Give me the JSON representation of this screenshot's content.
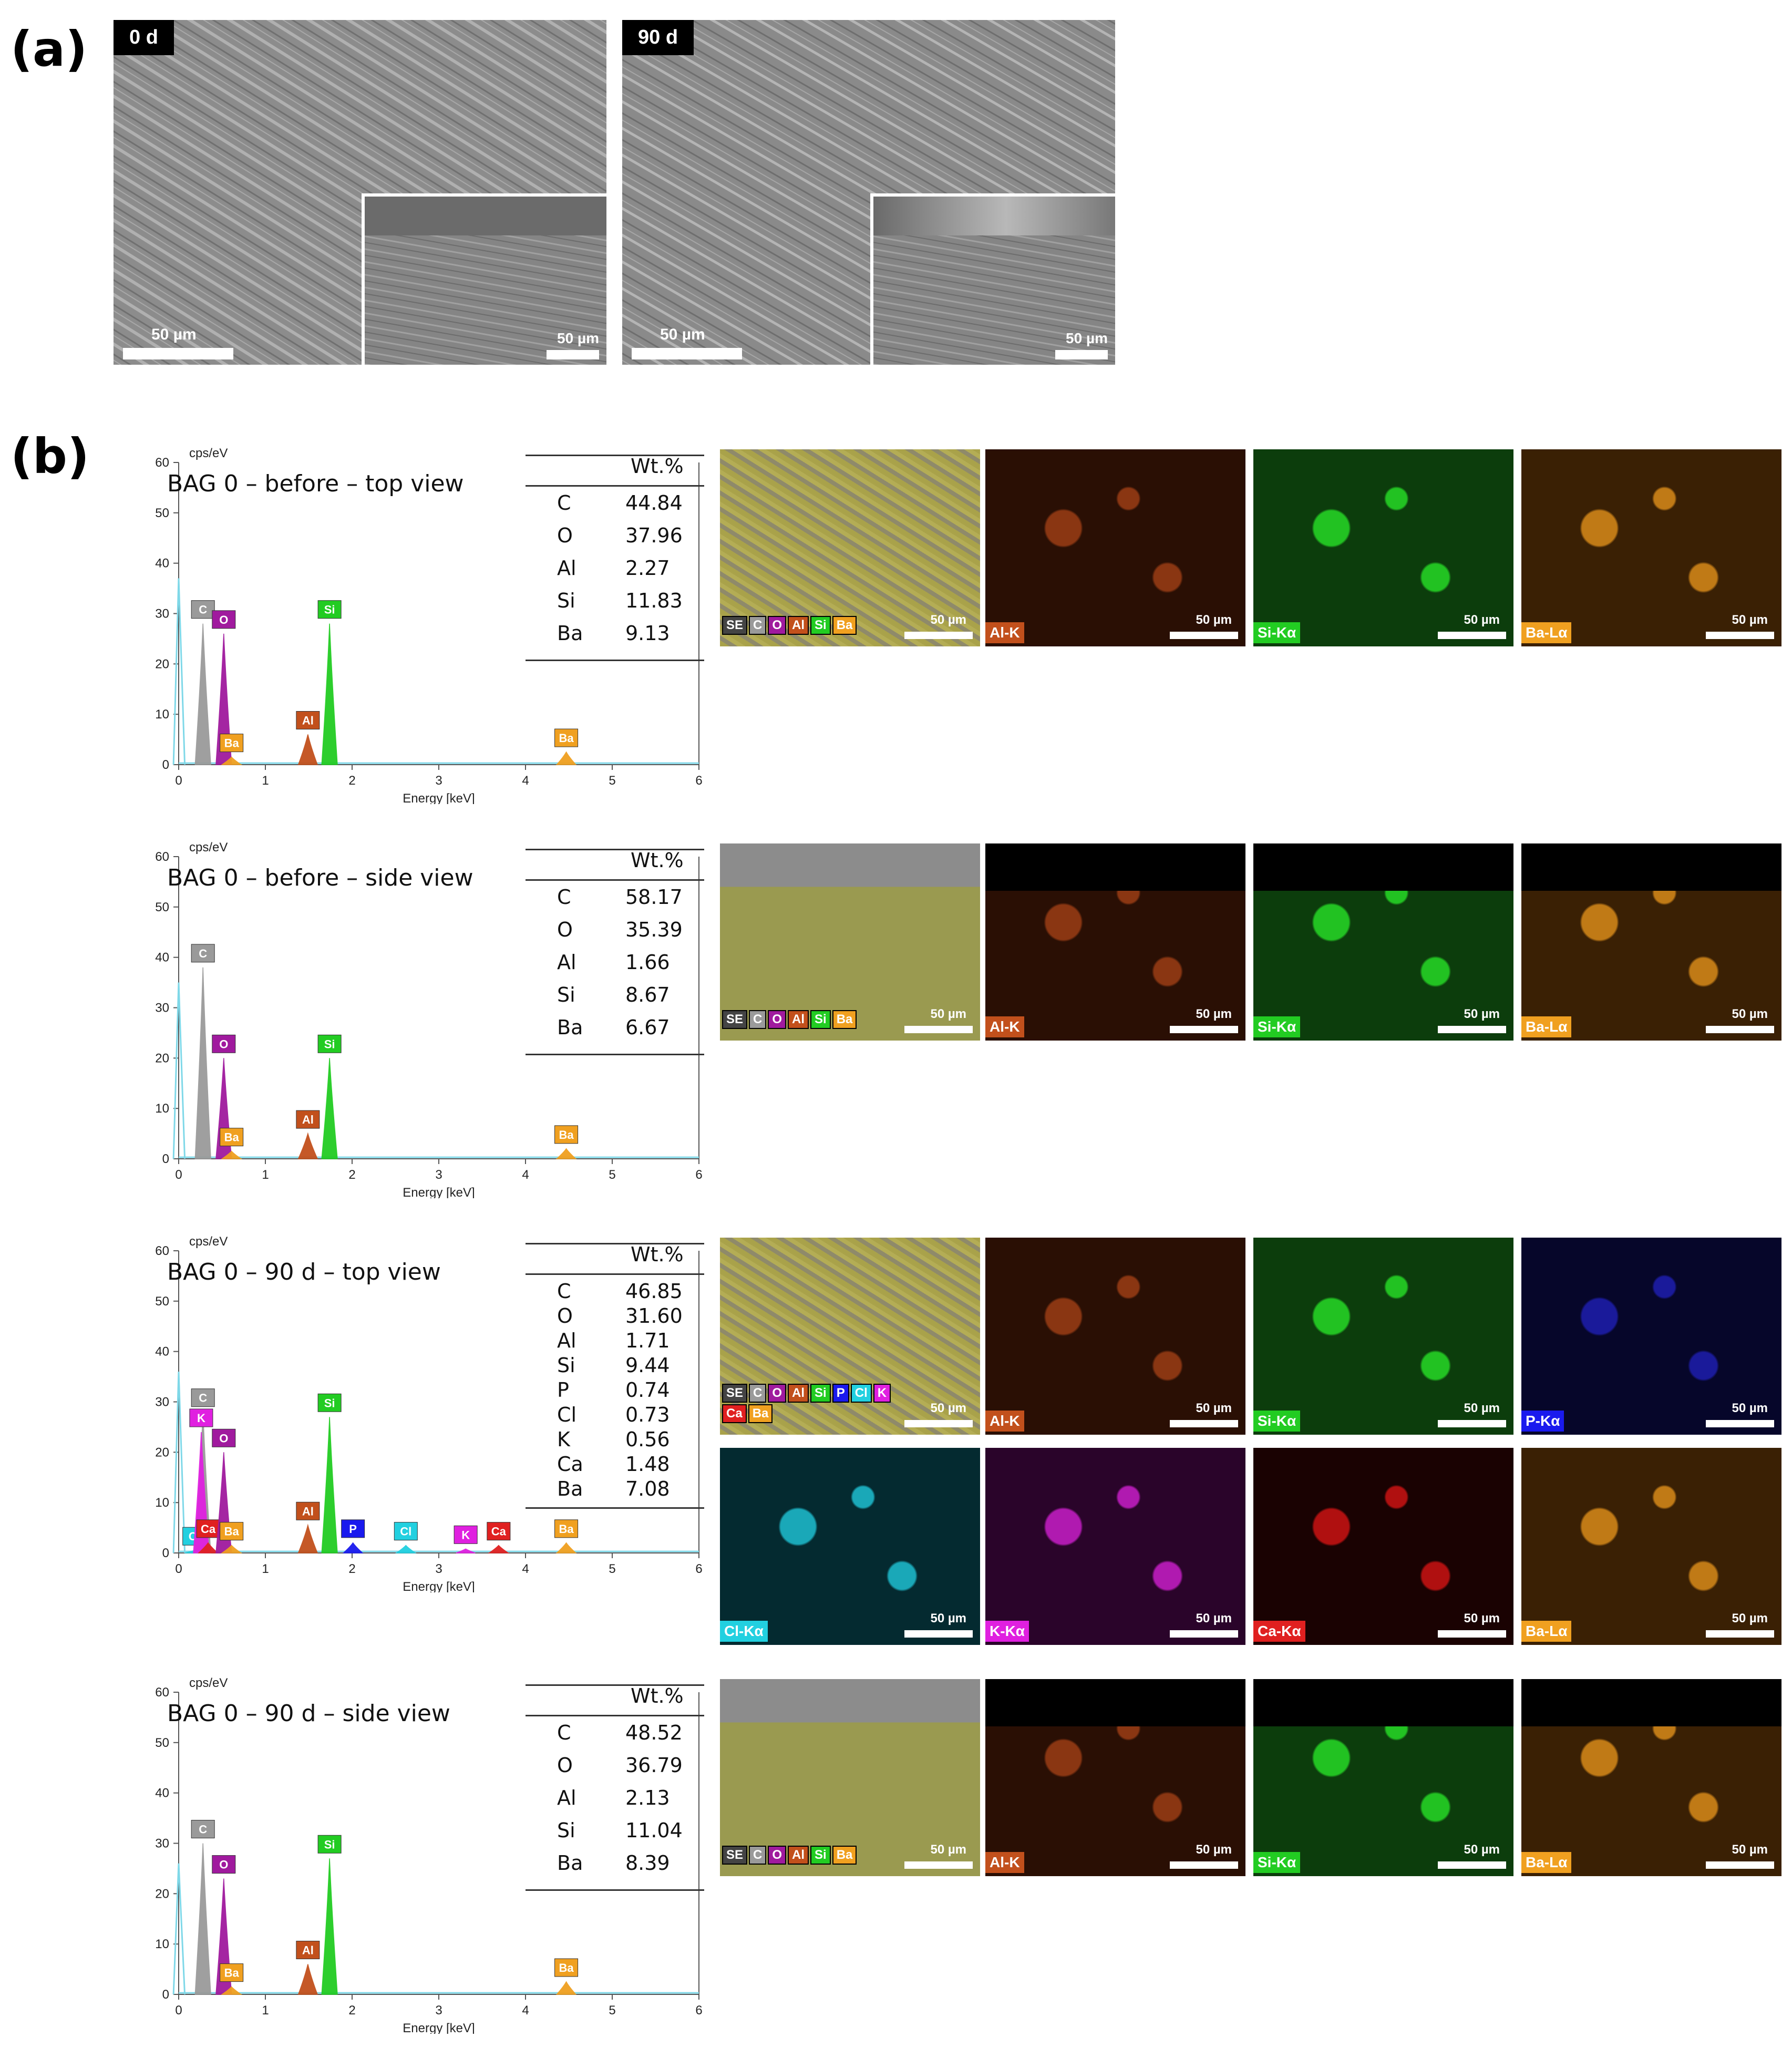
{
  "panel_a": {
    "letter": "(a)",
    "images": [
      {
        "tag": "0 d",
        "scale_main": "50 µm",
        "scale_inset": "50 µm"
      },
      {
        "tag": "90 d",
        "scale_main": "50 µm",
        "scale_inset": "50 µm"
      }
    ]
  },
  "panel_b": {
    "letter": "(b)",
    "rows": [
      {
        "title": "BAG 0 – before – top view",
        "table_header": "Wt.%",
        "table": [
          {
            "el": "C",
            "val": "44.84"
          },
          {
            "el": "O",
            "val": "37.96"
          },
          {
            "el": "Al",
            "val": "2.27"
          },
          {
            "el": "Si",
            "val": "11.83"
          },
          {
            "el": "Ba",
            "val": "9.13"
          }
        ],
        "chips": [
          "SE",
          "C",
          "O",
          "Al",
          "Si",
          "Ba"
        ],
        "maps": [
          {
            "label": "Al-K",
            "scale": "50 µm"
          },
          {
            "label": "Si-Kα",
            "scale": "50 µm"
          },
          {
            "label": "Ba-Lα",
            "scale": "50 µm"
          }
        ],
        "overlay_scale": "50 µm"
      },
      {
        "title": "BAG 0 – before – side view",
        "table_header": "Wt.%",
        "table": [
          {
            "el": "C",
            "val": "58.17"
          },
          {
            "el": "O",
            "val": "35.39"
          },
          {
            "el": "Al",
            "val": "1.66"
          },
          {
            "el": "Si",
            "val": "8.67"
          },
          {
            "el": "Ba",
            "val": "6.67"
          }
        ],
        "chips": [
          "SE",
          "C",
          "O",
          "Al",
          "Si",
          "Ba"
        ],
        "maps": [
          {
            "label": "Al-K",
            "scale": "50 µm"
          },
          {
            "label": "Si-Kα",
            "scale": "50 µm"
          },
          {
            "label": "Ba-Lα",
            "scale": "50 µm"
          }
        ],
        "overlay_scale": "50 µm"
      },
      {
        "title": "BAG 0 – 90 d – top view",
        "table_header": "Wt.%",
        "table": [
          {
            "el": "C",
            "val": "46.85"
          },
          {
            "el": "O",
            "val": "31.60"
          },
          {
            "el": "Al",
            "val": "1.71"
          },
          {
            "el": "Si",
            "val": "9.44"
          },
          {
            "el": "P",
            "val": "0.74"
          },
          {
            "el": "Cl",
            "val": "0.73"
          },
          {
            "el": "K",
            "val": "0.56"
          },
          {
            "el": "Ca",
            "val": "1.48"
          },
          {
            "el": "Ba",
            "val": "7.08"
          }
        ],
        "chips": [
          "SE",
          "C",
          "O",
          "Al",
          "Si",
          "P",
          "Cl",
          "K",
          "Ca",
          "Ba"
        ],
        "maps": [
          {
            "label": "Al-K",
            "scale": "50 µm"
          },
          {
            "label": "Si-Kα",
            "scale": "50 µm"
          },
          {
            "label": "P-Kα",
            "scale": "50 µm"
          },
          {
            "label": "Cl-Kα",
            "scale": "50 µm"
          },
          {
            "label": "K-Kα",
            "scale": "50 µm"
          },
          {
            "label": "Ca-Kα",
            "scale": "50 µm"
          },
          {
            "label": "Ba-Lα",
            "scale": "50 µm"
          }
        ],
        "overlay_scale": "50 µm"
      },
      {
        "title": "BAG 0 – 90 d – side view",
        "table_header": "Wt.%",
        "table": [
          {
            "el": "C",
            "val": "48.52"
          },
          {
            "el": "O",
            "val": "36.79"
          },
          {
            "el": "Al",
            "val": "2.13"
          },
          {
            "el": "Si",
            "val": "11.04"
          },
          {
            "el": "Ba",
            "val": "8.39"
          }
        ],
        "chips": [
          "SE",
          "C",
          "O",
          "Al",
          "Si",
          "Ba"
        ],
        "maps": [
          {
            "label": "Al-K",
            "scale": "50 µm"
          },
          {
            "label": "Si-Kα",
            "scale": "50 µm"
          },
          {
            "label": "Ba-Lα",
            "scale": "50 µm"
          }
        ],
        "overlay_scale": "50 µm"
      }
    ]
  },
  "colors": {
    "C": "#9a9a9a",
    "O": "#a01a9e",
    "Al": "#c2501c",
    "Si": "#22cc22",
    "Ba": "#f0a020",
    "P": "#1a1aee",
    "Cl": "#22d0e0",
    "K": "#e020e0",
    "Ca": "#e02020",
    "SE": "#444444",
    "noise": "#7fd8e8"
  },
  "chart_data": [
    {
      "type": "line",
      "title": "BAG 0 – before – top view",
      "xlabel": "Energy [keV]",
      "ylabel": "cps/eV",
      "xlim": [
        0,
        6
      ],
      "ylim": [
        0,
        60
      ],
      "xticks": [
        0,
        1,
        2,
        3,
        4,
        5,
        6
      ],
      "yticks": [
        0,
        10,
        20,
        30,
        40,
        50,
        60
      ],
      "noise_peak": {
        "x": 0.0,
        "y": 37
      },
      "peaks": [
        {
          "el": "C",
          "x": 0.28,
          "y": 28
        },
        {
          "el": "O",
          "x": 0.52,
          "y": 26
        },
        {
          "el": "Ba",
          "x": 0.61,
          "y": 1.5
        },
        {
          "el": "Al",
          "x": 1.49,
          "y": 6
        },
        {
          "el": "Si",
          "x": 1.74,
          "y": 28
        },
        {
          "el": "Ba",
          "x": 4.47,
          "y": 2.5
        }
      ]
    },
    {
      "type": "line",
      "title": "BAG 0 – before – side view",
      "xlabel": "Energy [keV]",
      "ylabel": "cps/eV",
      "xlim": [
        0,
        6
      ],
      "ylim": [
        0,
        60
      ],
      "xticks": [
        0,
        1,
        2,
        3,
        4,
        5,
        6
      ],
      "yticks": [
        0,
        10,
        20,
        30,
        40,
        50,
        60
      ],
      "noise_peak": {
        "x": 0.0,
        "y": 35
      },
      "peaks": [
        {
          "el": "C",
          "x": 0.28,
          "y": 38
        },
        {
          "el": "O",
          "x": 0.52,
          "y": 20
        },
        {
          "el": "Ba",
          "x": 0.61,
          "y": 1.5
        },
        {
          "el": "Al",
          "x": 1.49,
          "y": 5
        },
        {
          "el": "Si",
          "x": 1.74,
          "y": 20
        },
        {
          "el": "Ba",
          "x": 4.47,
          "y": 2
        }
      ]
    },
    {
      "type": "line",
      "title": "BAG 0 – 90 d – top view",
      "xlabel": "Energy [keV]",
      "ylabel": "cps/eV",
      "xlim": [
        0,
        6
      ],
      "ylim": [
        0,
        60
      ],
      "xticks": [
        0,
        1,
        2,
        3,
        4,
        5,
        6
      ],
      "yticks": [
        0,
        10,
        20,
        30,
        40,
        50,
        60
      ],
      "noise_peak": {
        "x": 0.0,
        "y": 36
      },
      "peaks": [
        {
          "el": "Cl",
          "x": 0.18,
          "y": 0.5
        },
        {
          "el": "C",
          "x": 0.28,
          "y": 28
        },
        {
          "el": "K",
          "x": 0.26,
          "y": 24
        },
        {
          "el": "Ca",
          "x": 0.34,
          "y": 2
        },
        {
          "el": "O",
          "x": 0.52,
          "y": 20
        },
        {
          "el": "Ba",
          "x": 0.61,
          "y": 1.5
        },
        {
          "el": "Al",
          "x": 1.49,
          "y": 5.5
        },
        {
          "el": "Si",
          "x": 1.74,
          "y": 27
        },
        {
          "el": "P",
          "x": 2.01,
          "y": 2
        },
        {
          "el": "Cl",
          "x": 2.62,
          "y": 1.5
        },
        {
          "el": "K",
          "x": 3.31,
          "y": 0.8
        },
        {
          "el": "Ca",
          "x": 3.69,
          "y": 1.5
        },
        {
          "el": "Ba",
          "x": 4.47,
          "y": 2
        }
      ]
    },
    {
      "type": "line",
      "title": "BAG 0 – 90 d – side view",
      "xlabel": "Energy [keV]",
      "ylabel": "cps/eV",
      "xlim": [
        0,
        6
      ],
      "ylim": [
        0,
        60
      ],
      "xticks": [
        0,
        1,
        2,
        3,
        4,
        5,
        6
      ],
      "yticks": [
        0,
        10,
        20,
        30,
        40,
        50,
        60
      ],
      "noise_peak": {
        "x": 0.0,
        "y": 26
      },
      "peaks": [
        {
          "el": "C",
          "x": 0.28,
          "y": 30
        },
        {
          "el": "O",
          "x": 0.52,
          "y": 23
        },
        {
          "el": "Ba",
          "x": 0.61,
          "y": 1.5
        },
        {
          "el": "Al",
          "x": 1.49,
          "y": 6
        },
        {
          "el": "Si",
          "x": 1.74,
          "y": 27
        },
        {
          "el": "Ba",
          "x": 4.47,
          "y": 2.5
        }
      ]
    }
  ]
}
